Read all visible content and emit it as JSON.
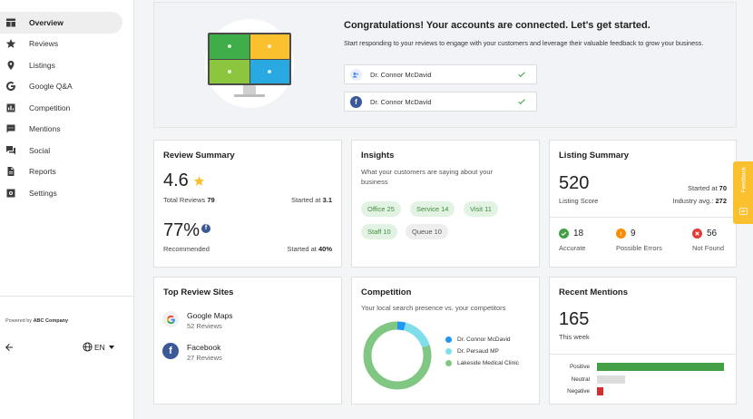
{
  "sidebar": {
    "items": [
      {
        "label": "Overview",
        "icon": "overview-icon",
        "active": true
      },
      {
        "label": "Reviews",
        "icon": "star-icon"
      },
      {
        "label": "Listings",
        "icon": "location-pin-icon"
      },
      {
        "label": "Google Q&A",
        "icon": "google-icon"
      },
      {
        "label": "Competition",
        "icon": "bar-chart-icon"
      },
      {
        "label": "Mentions",
        "icon": "comment-icon"
      },
      {
        "label": "Social",
        "icon": "forum-icon"
      },
      {
        "label": "Reports",
        "icon": "document-icon"
      },
      {
        "label": "Settings",
        "icon": "gear-icon"
      }
    ],
    "powered_prefix": "Powered by ",
    "powered_company": "ABC Company",
    "language": "EN"
  },
  "banner": {
    "title": "Congratulations! Your accounts are connected. Let's get started.",
    "subtitle": "Start responding to your reviews to engage with your customers and leverage their valuable feedback to grow your business.",
    "accounts": [
      {
        "name": "Dr. Connor McDavid",
        "platform": "google-my-business"
      },
      {
        "name": "Dr. Connor McDavid",
        "platform": "facebook"
      }
    ]
  },
  "review_summary": {
    "title": "Review Summary",
    "rating": "4.6",
    "total_label": "Total Reviews",
    "total_value": "79",
    "started_label": "Started at",
    "started_value": "3.1",
    "recommended_pct": "77%",
    "recommended_label": "Recommended",
    "started2_label": "Started at",
    "started2_value": "40%"
  },
  "insights": {
    "title": "Insights",
    "subtitle": "What your customers are saying about your business",
    "chips": [
      {
        "label": "Office",
        "count": "25",
        "tone": "positive"
      },
      {
        "label": "Service",
        "count": "14",
        "tone": "positive"
      },
      {
        "label": "Visit",
        "count": "11",
        "tone": "positive"
      },
      {
        "label": "Staff",
        "count": "10",
        "tone": "positive"
      },
      {
        "label": "Queue",
        "count": "10",
        "tone": "neutral"
      }
    ]
  },
  "listing_summary": {
    "title": "Listing Summary",
    "score": "520",
    "score_label": "Listing Score",
    "started_label": "Started at",
    "started_value": "70",
    "industry_label": "Industry avg.:",
    "industry_value": "272",
    "statuses": [
      {
        "count": "18",
        "label": "Accurate",
        "color": "#43a047"
      },
      {
        "count": "9",
        "label": "Possible Errors",
        "color": "#fb8c00"
      },
      {
        "count": "56",
        "label": "Not Found",
        "color": "#e53935"
      }
    ]
  },
  "top_sites": {
    "title": "Top Review Sites",
    "sites": [
      {
        "name": "Google Maps",
        "reviews": "52 Reviews",
        "icon": "google-icon"
      },
      {
        "name": "Facebook",
        "reviews": "27 Reviews",
        "icon": "facebook-icon"
      }
    ]
  },
  "competition": {
    "title": "Competition",
    "subtitle": "Your local search presence vs. your competitors",
    "chart_data": {
      "type": "pie",
      "donut": true,
      "labels": [
        "Dr. Connor McDavid",
        "Dr. Persaud MP",
        "Lakeside Medical Clinic"
      ],
      "values": [
        4,
        16,
        80
      ],
      "colors": [
        "#2196f3",
        "#80deea",
        "#81c784"
      ],
      "legend": "right"
    }
  },
  "mentions": {
    "title": "Recent Mentions",
    "count": "165",
    "period": "This week",
    "chart_data": {
      "type": "bar",
      "orientation": "horizontal",
      "categories": [
        "Positive",
        "Neutral",
        "Negative"
      ],
      "values": [
        100,
        22,
        5
      ],
      "colors": [
        "#43a047",
        "#dddddd",
        "#d32f2f"
      ],
      "xlim": [
        0,
        100
      ],
      "grid": false
    }
  },
  "feedback": {
    "label": "Feedback"
  }
}
